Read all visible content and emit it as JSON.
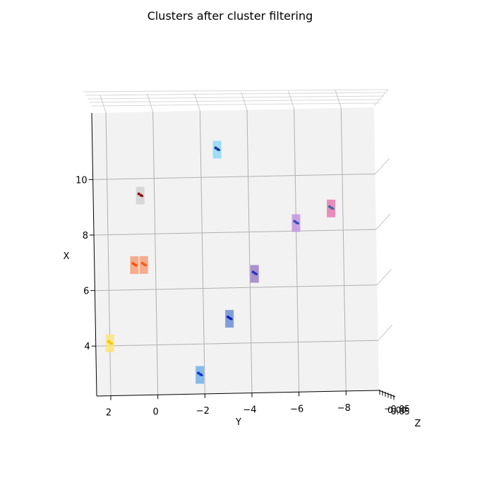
{
  "chart_data": {
    "type": "scatter",
    "projection": "3d",
    "title": "Clusters after cluster filtering",
    "xlabel": "X",
    "ylabel": "Y",
    "zlabel": "Z",
    "x_axis": {
      "label": "X",
      "ticks": [
        4,
        6,
        8,
        10
      ],
      "tick_labels": [
        "4",
        "6",
        "8",
        "10"
      ],
      "range": [
        2.2,
        12.4
      ]
    },
    "y_axis": {
      "label": "Y",
      "ticks": [
        2,
        0,
        -2,
        -4,
        -6,
        -8
      ],
      "tick_labels": [
        "2",
        "0",
        "−2",
        "−4",
        "−6",
        "−8"
      ],
      "range": [
        2.6,
        -9.4
      ]
    },
    "z_axis": {
      "label": "Z",
      "tick_labels": [
        "−0.05",
        "0.00",
        "0.05"
      ]
    },
    "grid": true,
    "clusters": [
      {
        "y": 2.0,
        "x": 4.1,
        "color": "#f5c400",
        "box_color": "#fde47a"
      },
      {
        "y": -1.8,
        "x": 2.9,
        "color": "#0a2fd0",
        "box_color": "#73b2e8"
      },
      {
        "y": -3.1,
        "x": 4.9,
        "color": "#0a1fb5",
        "box_color": "#6f8fd6"
      },
      {
        "y": 0.9,
        "x": 6.9,
        "color": "#ff4d00",
        "box_color": "#f4a07a"
      },
      {
        "y": 0.5,
        "x": 6.9,
        "color": "#ff5a10",
        "box_color": "#f4a07a"
      },
      {
        "y": 0.6,
        "x": 9.4,
        "color": "#8b1010",
        "box_color": "#d2d2d2"
      },
      {
        "y": -4.2,
        "x": 6.5,
        "color": "#2a2fc0",
        "box_color": "#9b83c7"
      },
      {
        "y": -6.0,
        "x": 8.3,
        "color": "#3050c0",
        "box_color": "#c694e2"
      },
      {
        "y": -7.5,
        "x": 8.8,
        "color": "#3a6a9a",
        "box_color": "#e87ab2"
      },
      {
        "y": -2.7,
        "x": 11.0,
        "color": "#0a30a0",
        "box_color": "#8ed8f8"
      }
    ]
  }
}
